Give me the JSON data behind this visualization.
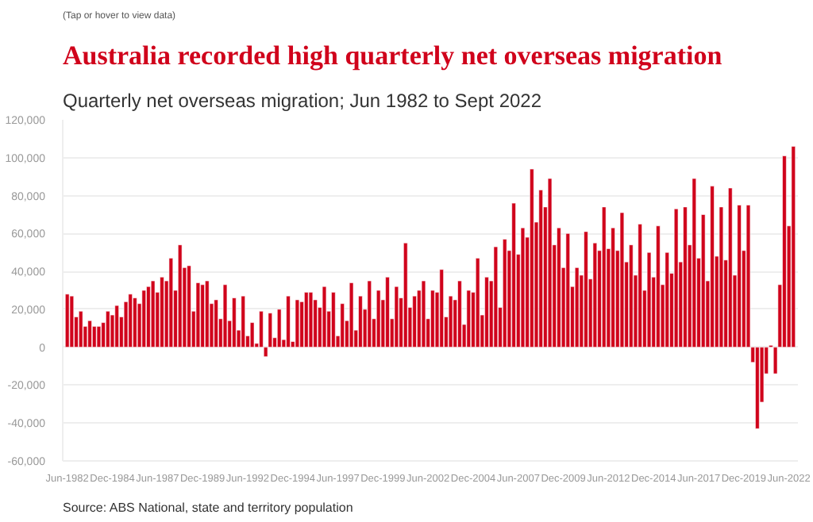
{
  "chart_data": {
    "type": "bar",
    "title": "Australia recorded high quarterly net overseas migration",
    "subtitle": "Quarterly net overseas migration; Jun 1982 to Sept 2022",
    "annotations": [
      "(Tap or hover to view data)",
      "Source: ABS National, state and territory population"
    ],
    "categories": [
      "Jun-1982",
      null,
      null,
      null,
      null,
      null,
      null,
      null,
      null,
      null,
      "Dec-1984",
      null,
      null,
      null,
      null,
      null,
      null,
      null,
      null,
      null,
      "Jun-1987",
      null,
      null,
      null,
      null,
      null,
      null,
      null,
      null,
      null,
      "Dec-1989",
      null,
      null,
      null,
      null,
      null,
      null,
      null,
      null,
      null,
      "Jun-1992",
      null,
      null,
      null,
      null,
      null,
      null,
      null,
      null,
      null,
      "Dec-1994",
      null,
      null,
      null,
      null,
      null,
      null,
      null,
      null,
      null,
      "Jun-1997",
      null,
      null,
      null,
      null,
      null,
      null,
      null,
      null,
      null,
      "Dec-1999",
      null,
      null,
      null,
      null,
      null,
      null,
      null,
      null,
      null,
      "Jun-2002",
      null,
      null,
      null,
      null,
      null,
      null,
      null,
      null,
      null,
      "Dec-2004",
      null,
      null,
      null,
      null,
      null,
      null,
      null,
      null,
      null,
      "Jun-2007",
      null,
      null,
      null,
      null,
      null,
      null,
      null,
      null,
      null,
      "Dec-2009",
      null,
      null,
      null,
      null,
      null,
      null,
      null,
      null,
      null,
      "Jun-2012",
      null,
      null,
      null,
      null,
      null,
      null,
      null,
      null,
      null,
      "Dec-2014",
      null,
      null,
      null,
      null,
      null,
      null,
      null,
      null,
      null,
      "Jun-2017",
      null,
      null,
      null,
      null,
      null,
      null,
      null,
      null,
      null,
      "Dec-2019",
      null,
      null,
      null,
      null,
      null,
      null,
      null,
      null,
      null,
      "Jun-2022",
      null
    ],
    "values": [
      28000,
      27000,
      16000,
      19000,
      11000,
      14000,
      11000,
      11000,
      13000,
      19000,
      17000,
      22000,
      16000,
      24000,
      28000,
      26000,
      23000,
      30000,
      32000,
      35000,
      29000,
      37000,
      35000,
      47000,
      30000,
      54000,
      42000,
      43000,
      19000,
      34000,
      33000,
      35000,
      23000,
      25000,
      15000,
      33000,
      14000,
      26000,
      9000,
      27000,
      6000,
      13000,
      2000,
      19000,
      -5000,
      18000,
      5000,
      20000,
      4000,
      27000,
      3000,
      25000,
      24000,
      29000,
      29000,
      25000,
      21000,
      32000,
      19000,
      29000,
      6000,
      23000,
      14000,
      34000,
      9000,
      27000,
      20000,
      35000,
      15000,
      30000,
      25000,
      37000,
      15000,
      32000,
      26000,
      55000,
      21000,
      27000,
      30000,
      35000,
      15000,
      30000,
      29000,
      41000,
      16000,
      27000,
      25000,
      35000,
      12000,
      30000,
      29000,
      47000,
      17000,
      37000,
      35000,
      53000,
      21000,
      57000,
      51000,
      76000,
      49000,
      63000,
      58000,
      94000,
      66000,
      83000,
      74000,
      89000,
      54000,
      63000,
      42000,
      60000,
      32000,
      42000,
      38000,
      61000,
      36000,
      55000,
      51000,
      74000,
      52000,
      63000,
      51000,
      71000,
      45000,
      54000,
      38000,
      65000,
      30000,
      50000,
      37000,
      64000,
      33000,
      50000,
      39000,
      73000,
      45000,
      74000,
      54000,
      89000,
      47000,
      70000,
      35000,
      85000,
      48000,
      74000,
      46000,
      84000,
      38000,
      75000,
      51000,
      75000,
      -8000,
      -43000,
      -29000,
      -14000,
      1000,
      -14000,
      33000,
      101000,
      64000,
      106000
    ],
    "color": "#d0021b",
    "ylim": [
      -60000,
      120000
    ],
    "yticks": [
      {
        "value": -60000,
        "label": "-60,000"
      },
      {
        "value": -40000,
        "label": "-40,000"
      },
      {
        "value": -20000,
        "label": "-20,000"
      },
      0,
      {
        "value": 20000,
        "label": "20,000"
      },
      {
        "value": 40000,
        "label": "40,000"
      },
      {
        "value": 60000,
        "label": "60,000"
      },
      {
        "value": 80000,
        "label": "80,000"
      },
      {
        "value": 100000,
        "label": "100,000"
      },
      {
        "value": 120000,
        "label": "120,000"
      }
    ],
    "grid": "y"
  }
}
